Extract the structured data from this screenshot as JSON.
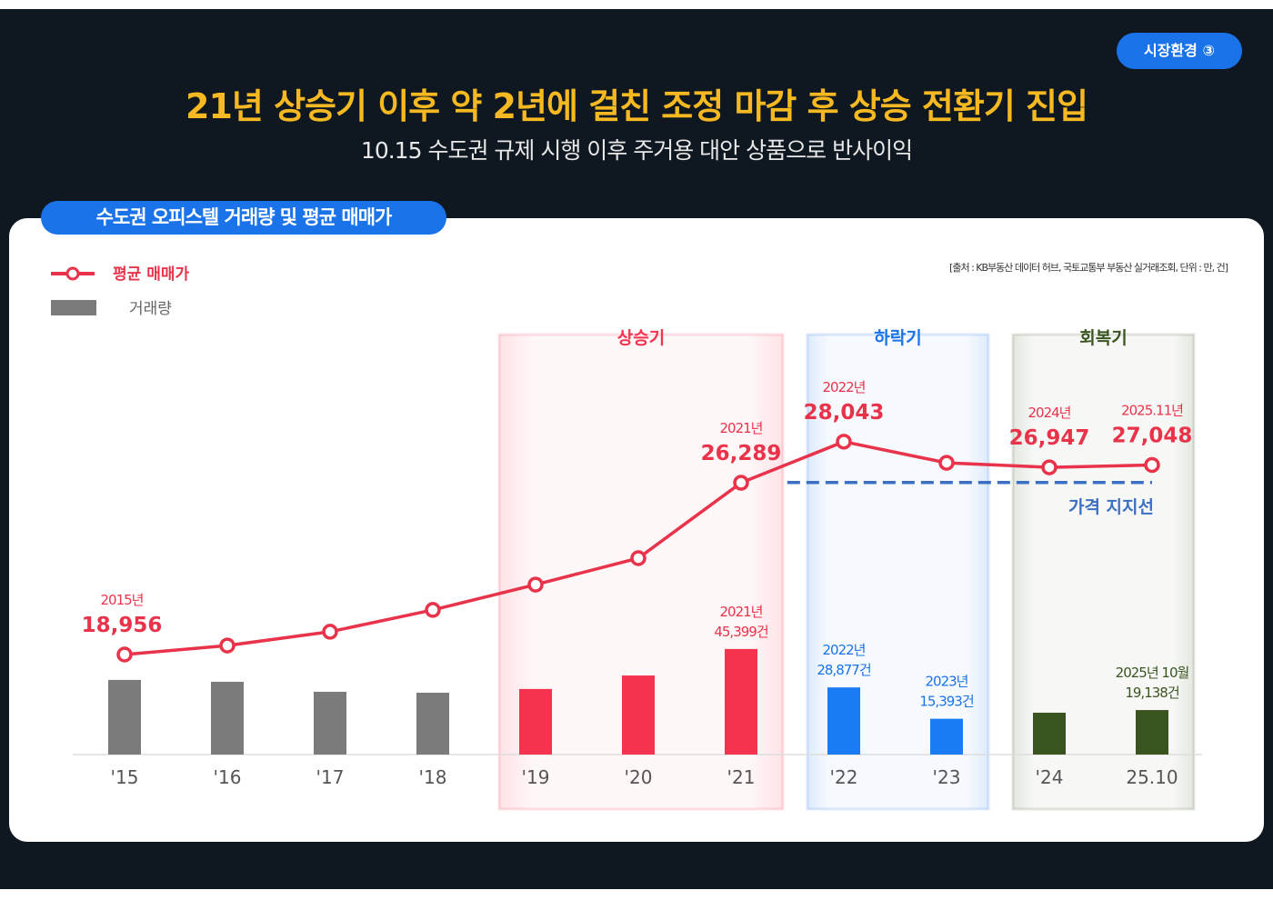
{
  "badge": "시장환경 ③",
  "title": "21년 상승기 이후 약 2년에 걸친 조정 마감 후 상승 전환기 진입",
  "subtitle": "10.15 수도권 규제 시행 이후 주거용 대안 상품으로 반사이익",
  "source": "[출처 : KB부동산 데이터 허브, 국토교통부 부동산 실거래조회, 단위 : 만, 건]",
  "colors": {
    "background": "#0f1720",
    "title": "#f6b921",
    "accent": "#1a73e8",
    "line": "#e8334a",
    "bar_default": "#7b7b7b",
    "bar_rise": "#f5334f",
    "bar_fall": "#1a7cf5",
    "bar_recovery": "#3a5420",
    "support": "#3b6fc4"
  },
  "chart_data": {
    "type": "bar+line",
    "title": "수도권 오피스텔 거래량 및 평균 매매가",
    "categories": [
      "'15",
      "'16",
      "'17",
      "'18",
      "'19",
      "'20",
      "'21",
      "'22",
      "'23",
      "'24",
      "25.10"
    ],
    "legend": {
      "placement": "top-left",
      "entries": [
        "평균 매매가",
        "거래량"
      ]
    },
    "series": [
      {
        "name": "평균 매매가",
        "type": "line",
        "values": [
          18956,
          19340,
          19930,
          20860,
          21940,
          23070,
          26289,
          28043,
          27140,
          26947,
          27048
        ]
      },
      {
        "name": "거래량",
        "type": "bar",
        "values": [
          32100,
          31300,
          27000,
          26600,
          28200,
          34000,
          45399,
          28877,
          15393,
          18000,
          19138
        ]
      }
    ],
    "periods": [
      {
        "label": "상승기",
        "from": "'19",
        "to": "'21",
        "color": "#f5334f"
      },
      {
        "label": "하락기",
        "from": "'22",
        "to": "'23",
        "color": "#1a73e8"
      },
      {
        "label": "회복기",
        "from": "'24",
        "to": "25.10",
        "color": "#3a5420"
      }
    ],
    "price_labels": [
      {
        "index": 0,
        "year": "2015년",
        "value": "18,956"
      },
      {
        "index": 6,
        "year": "2021년",
        "value": "26,289"
      },
      {
        "index": 7,
        "year": "2022년",
        "value": "28,043"
      },
      {
        "index": 9,
        "year": "2024년",
        "value": "26,947"
      },
      {
        "index": 10,
        "year": "2025.11년",
        "value": "27,048"
      }
    ],
    "volume_labels": [
      {
        "index": 6,
        "line1": "2021년",
        "line2": "45,399건",
        "color": "#e8334a"
      },
      {
        "index": 7,
        "line1": "2022년",
        "line2": "28,877건",
        "color": "#1a73e8"
      },
      {
        "index": 8,
        "line1": "2023년",
        "line2": "15,393건",
        "color": "#1a73e8"
      },
      {
        "index": 10,
        "line1": "2025년 10월",
        "line2": "19,138건",
        "color": "#3a5420"
      }
    ],
    "support_line": {
      "label": "가격 지지선",
      "value": 26300,
      "from_index": 6.45,
      "to_index": 10
    }
  }
}
